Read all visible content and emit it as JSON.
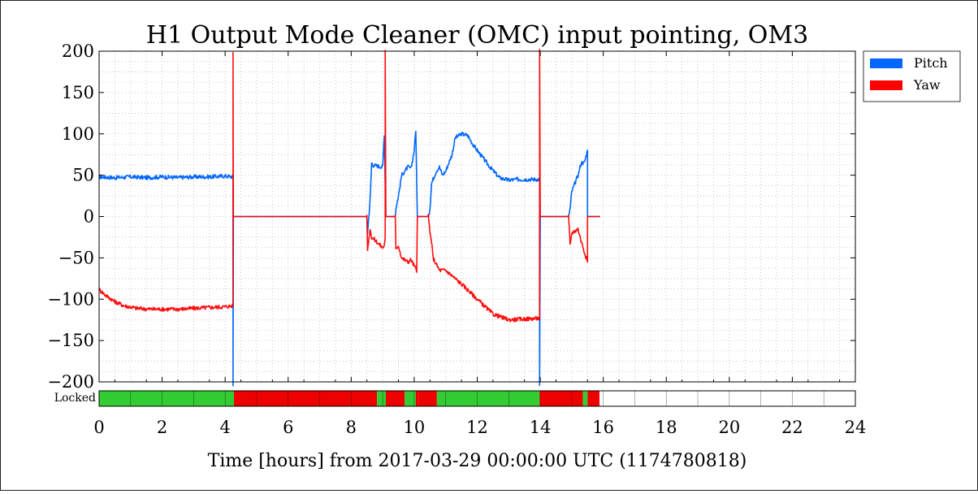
{
  "chart_data": {
    "type": "line",
    "title": "H1 Output Mode Cleaner (OMC) input pointing, OM3",
    "xlabel": "Time [hours] from 2017-03-29 00:00:00 UTC (1174780818)",
    "ylabel": "",
    "xlim": [
      0,
      24
    ],
    "ylim": [
      -200,
      200
    ],
    "x_ticks": [
      "0",
      "2",
      "4",
      "6",
      "8",
      "10",
      "12",
      "14",
      "16",
      "18",
      "20",
      "22",
      "24"
    ],
    "y_ticks": [
      "200",
      "150",
      "100",
      "50",
      "0",
      "−50",
      "−100",
      "−150",
      "−200"
    ],
    "grid": true,
    "legend_position": "outside-top-right",
    "series": [
      {
        "name": "Pitch",
        "color": "#0066ff",
        "x": [
          0,
          0.5,
          1,
          1.5,
          2,
          2.5,
          3,
          3.5,
          4,
          4.25,
          4.25,
          4.26,
          8.5,
          8.52,
          8.6,
          8.65,
          8.7,
          9.0,
          9.05,
          9.1,
          9.4,
          9.42,
          9.5,
          9.6,
          9.8,
          9.9,
          10.0,
          10.05,
          10.1,
          10.45,
          10.5,
          10.55,
          10.6,
          10.7,
          10.8,
          10.9,
          11.0,
          11.2,
          11.3,
          11.5,
          11.7,
          11.9,
          12.1,
          12.4,
          12.7,
          13.0,
          13.3,
          13.6,
          13.95,
          13.98,
          13.98,
          14.0,
          14.9,
          14.95,
          15.0,
          15.2,
          15.3,
          15.4,
          15.5,
          15.5,
          15.9
        ],
        "y": [
          48,
          47,
          48,
          47,
          48,
          47,
          48,
          48,
          49,
          48,
          -205,
          0,
          0,
          -20,
          20,
          65,
          62,
          60,
          100,
          0,
          0,
          10,
          25,
          50,
          60,
          58,
          80,
          105,
          0,
          0,
          10,
          40,
          45,
          55,
          60,
          50,
          55,
          75,
          95,
          100,
          98,
          85,
          75,
          60,
          47,
          44,
          45,
          45,
          45,
          45,
          -205,
          0,
          0,
          10,
          30,
          50,
          65,
          65,
          80,
          0,
          0
        ]
      },
      {
        "name": "Yaw",
        "color": "#ff0000",
        "x": [
          0,
          0.2,
          0.5,
          0.8,
          1.2,
          1.6,
          2,
          2.5,
          3,
          3.5,
          4,
          4.25,
          4.25,
          4.26,
          8.5,
          8.52,
          8.6,
          8.65,
          8.8,
          9.0,
          9.05,
          9.08,
          9.08,
          9.1,
          9.4,
          9.42,
          9.5,
          9.6,
          9.8,
          9.9,
          10.0,
          10.08,
          10.1,
          10.45,
          10.5,
          10.55,
          10.6,
          10.8,
          11.0,
          11.3,
          11.6,
          12.0,
          12.5,
          13.0,
          13.5,
          13.95,
          13.98,
          13.98,
          14.0,
          14.9,
          14.95,
          15.0,
          15.2,
          15.3,
          15.5,
          15.5,
          15.9
        ],
        "y": [
          -88,
          -95,
          -103,
          -108,
          -111,
          -112,
          -112,
          -112,
          -111,
          -110,
          -109,
          -108,
          200,
          0,
          0,
          -40,
          -15,
          -25,
          -30,
          -38,
          -35,
          -25,
          200,
          0,
          0,
          -40,
          -35,
          -50,
          -55,
          -52,
          -60,
          -65,
          0,
          0,
          -20,
          -30,
          -50,
          -65,
          -65,
          -75,
          -85,
          -100,
          -118,
          -125,
          -124,
          -123,
          -123,
          200,
          0,
          0,
          -35,
          -20,
          -15,
          -30,
          -55,
          0,
          0
        ]
      }
    ],
    "state_bar": {
      "label": "Locked",
      "segments": [
        {
          "start": 0,
          "end": 4.28,
          "state": "locked",
          "color": "#33cc33"
        },
        {
          "start": 4.28,
          "end": 8.82,
          "state": "unlocked",
          "color": "#ee0000"
        },
        {
          "start": 8.82,
          "end": 9.1,
          "state": "locked",
          "color": "#33cc33"
        },
        {
          "start": 9.1,
          "end": 9.7,
          "state": "unlocked",
          "color": "#ee0000"
        },
        {
          "start": 9.7,
          "end": 10.05,
          "state": "locked",
          "color": "#33cc33"
        },
        {
          "start": 10.05,
          "end": 10.15,
          "state": "unlocked",
          "color": "#ee0000"
        },
        {
          "start": 10.15,
          "end": 10.72,
          "state": "unlocked",
          "color": "#ee0000"
        },
        {
          "start": 10.72,
          "end": 13.98,
          "state": "locked",
          "color": "#33cc33"
        },
        {
          "start": 13.98,
          "end": 15.35,
          "state": "unlocked",
          "color": "#ee0000"
        },
        {
          "start": 15.35,
          "end": 15.5,
          "state": "locked",
          "color": "#33cc33"
        },
        {
          "start": 15.5,
          "end": 15.88,
          "state": "unlocked",
          "color": "#ee0000"
        }
      ]
    }
  }
}
